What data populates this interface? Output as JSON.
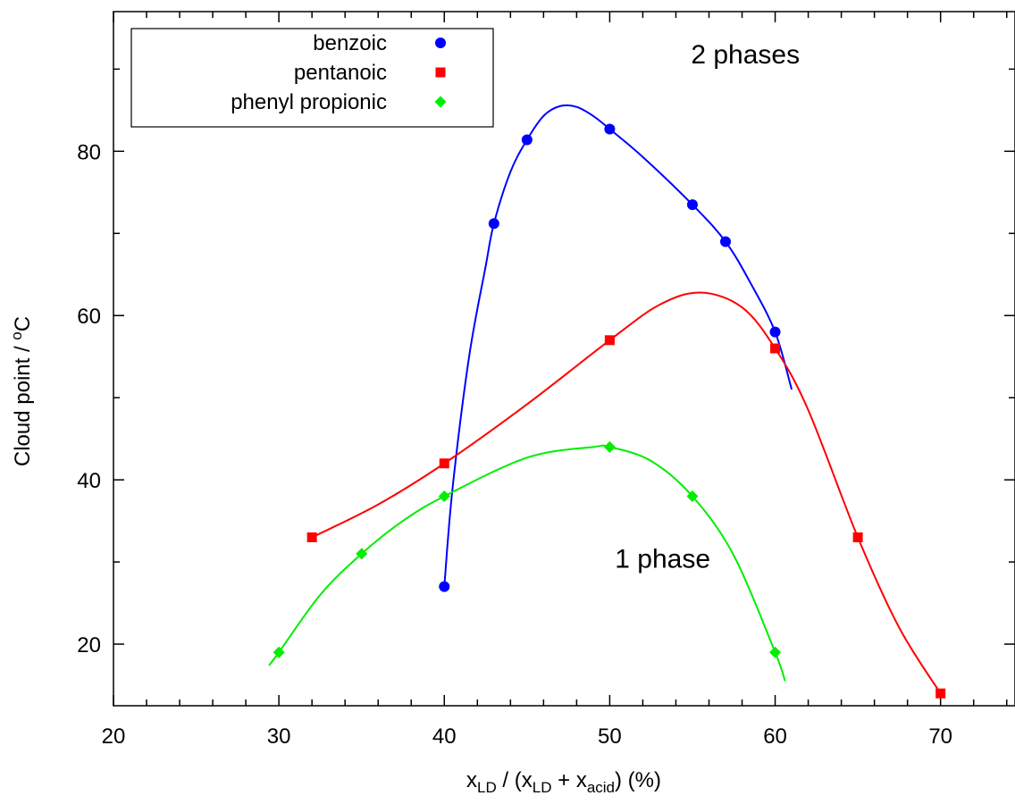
{
  "chart_data": {
    "type": "scatter",
    "xlabel": {
      "parts": [
        {
          "t": "x",
          "sub": false
        },
        {
          "t": "LD",
          "sub": true
        },
        {
          "t": " / (x",
          "sub": false
        },
        {
          "t": "LD",
          "sub": true
        },
        {
          "t": " + x",
          "sub": false
        },
        {
          "t": "acid",
          "sub": true
        },
        {
          "t": ") (%)",
          "sub": false
        }
      ]
    },
    "ylabel": {
      "parts": [
        {
          "t": "Cloud point / ",
          "sup": false
        },
        {
          "t": "o",
          "sup": true
        },
        {
          "t": "C",
          "sup": false
        }
      ]
    },
    "xlim": [
      20,
      74.5
    ],
    "ylim": [
      12.5,
      97
    ],
    "xticks": [
      20,
      30,
      40,
      50,
      60,
      70
    ],
    "xticks_minor": [
      22,
      24,
      26,
      28,
      32,
      34,
      36,
      38,
      42,
      44,
      46,
      48,
      52,
      54,
      56,
      58,
      62,
      64,
      66,
      68,
      72,
      74
    ],
    "yticks": [
      20,
      40,
      60,
      80
    ],
    "yticks_minor": [
      30,
      50,
      70,
      90
    ],
    "grid": false,
    "legend_position": "top-left",
    "series": [
      {
        "name": "benzoic",
        "color": "#0000ff",
        "marker": "circle",
        "x": [
          40,
          43,
          45,
          50,
          55,
          57,
          60
        ],
        "y": [
          27,
          71.2,
          81.4,
          82.7,
          73.5,
          69,
          58
        ],
        "curve": [
          [
            40,
            27
          ],
          [
            40.5,
            39
          ],
          [
            41.5,
            55
          ],
          [
            42.5,
            66
          ],
          [
            43,
            71.2
          ],
          [
            44,
            77.5
          ],
          [
            45,
            81.4
          ],
          [
            46,
            84.3
          ],
          [
            47,
            85.5
          ],
          [
            48,
            85.4
          ],
          [
            49,
            84.3
          ],
          [
            50,
            82.7
          ],
          [
            52,
            79.3
          ],
          [
            55,
            73.5
          ],
          [
            57,
            69
          ],
          [
            58.5,
            64
          ],
          [
            60,
            58
          ],
          [
            61,
            51
          ]
        ]
      },
      {
        "name": "pentanoic",
        "color": "#ff0000",
        "marker": "square",
        "x": [
          32,
          40,
          50,
          60,
          65,
          70
        ],
        "y": [
          33,
          42,
          57,
          56,
          33,
          14
        ],
        "curve": [
          [
            32,
            33
          ],
          [
            36,
            37
          ],
          [
            40,
            42
          ],
          [
            45,
            49.2
          ],
          [
            50,
            57
          ],
          [
            53,
            61.3
          ],
          [
            55.5,
            62.8
          ],
          [
            58,
            61
          ],
          [
            60,
            56
          ],
          [
            62,
            48.5
          ],
          [
            65,
            33
          ],
          [
            67.5,
            22
          ],
          [
            70,
            14
          ]
        ]
      },
      {
        "name": "phenyl propionic",
        "color": "#00ee00",
        "marker": "diamond",
        "x": [
          30,
          35,
          40,
          50,
          55,
          60
        ],
        "y": [
          19,
          31,
          38,
          44,
          38,
          19
        ],
        "curve": [
          [
            29.4,
            17.4
          ],
          [
            30,
            19
          ],
          [
            32.5,
            26
          ],
          [
            35,
            31
          ],
          [
            37.5,
            35
          ],
          [
            40,
            38
          ],
          [
            45,
            42.7
          ],
          [
            49,
            44
          ],
          [
            50,
            44
          ],
          [
            52.5,
            42.3
          ],
          [
            55,
            38
          ],
          [
            57.5,
            30.8
          ],
          [
            60,
            19
          ],
          [
            60.6,
            15.5
          ]
        ]
      }
    ],
    "annotations": [
      {
        "text": "2 phases",
        "x": 58.2,
        "y": 90.7
      },
      {
        "text": "1 phase",
        "x": 53.2,
        "y": 29.3
      }
    ]
  }
}
